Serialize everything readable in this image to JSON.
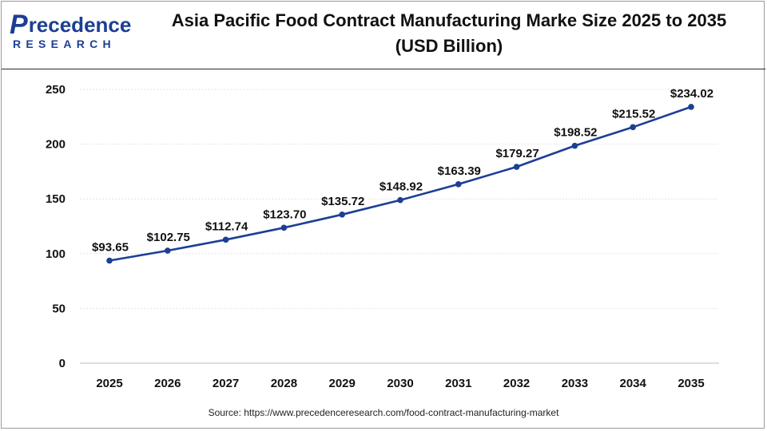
{
  "brand": {
    "logo_mark": "P",
    "logo_word": "recedence",
    "logo_sub": "RESEARCH"
  },
  "chart_data": {
    "type": "line",
    "title_line1": "Asia Pacific Food Contract Manufacturing Marke Size 2025 to 2035",
    "title_line2": "(USD Billion)",
    "xlabel": "",
    "ylabel": "",
    "categories": [
      "2025",
      "2026",
      "2027",
      "2028",
      "2029",
      "2030",
      "2031",
      "2032",
      "2033",
      "2034",
      "2035"
    ],
    "values": [
      93.65,
      102.75,
      112.74,
      123.7,
      135.72,
      148.92,
      163.39,
      179.27,
      198.52,
      215.52,
      234.02
    ],
    "data_labels": [
      "$93.65",
      "$102.75",
      "$112.74",
      "$123.70",
      "$135.72",
      "$148.92",
      "$163.39",
      "$179.27",
      "$198.52",
      "$215.52",
      "$234.02"
    ],
    "ylim": [
      0,
      250
    ],
    "yticks": [
      0,
      50,
      100,
      150,
      200,
      250
    ],
    "grid": true,
    "legend": "none",
    "line_color": "#1c3f94"
  },
  "source_text": "Source: https://www.precedenceresearch.com/food-contract-manufacturing-market"
}
